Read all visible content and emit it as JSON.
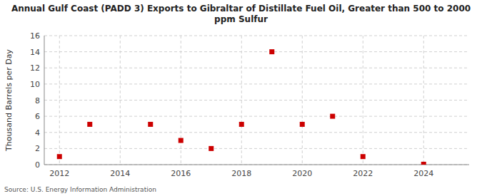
{
  "chart_data": {
    "type": "scatter",
    "title": "Annual Gulf Coast (PADD 3) Exports to Gibraltar of Distillate Fuel Oil, Greater than 500 to 2000\nppm Sulfur",
    "ylabel": "Thousand Barrels per Day",
    "annotations": [
      "Source: U.S. Energy Information Administration"
    ],
    "x": [
      2012,
      2013,
      2015,
      2016,
      2017,
      2018,
      2019,
      2020,
      2021,
      2022,
      2024
    ],
    "values": [
      1,
      5,
      5,
      3,
      2,
      5,
      14,
      5,
      6,
      1,
      0.05
    ],
    "color": "#cc0000",
    "marker": "square",
    "xlim": [
      2011.5,
      2025.5
    ],
    "ylim": [
      0,
      16
    ],
    "xticks": [
      2012,
      2014,
      2016,
      2018,
      2020,
      2022,
      2024
    ],
    "yticks": [
      0,
      2,
      4,
      6,
      8,
      10,
      12,
      14,
      16
    ],
    "grid": true
  }
}
